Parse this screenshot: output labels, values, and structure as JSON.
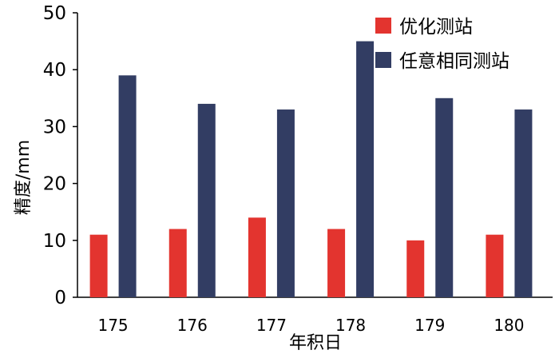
{
  "chart_data": {
    "type": "bar",
    "categories": [
      "175",
      "176",
      "177",
      "178",
      "179",
      "180"
    ],
    "series": [
      {
        "name": "优化测站",
        "color": "#e3342f",
        "values": [
          11,
          12,
          14,
          12,
          10,
          11
        ]
      },
      {
        "name": "任意相同测站",
        "color": "#323d63",
        "values": [
          39,
          34,
          33,
          45,
          35,
          33
        ]
      }
    ],
    "xlabel": "年积日",
    "ylabel": "精度/mm",
    "ylim": [
      0,
      50
    ],
    "yticks": [
      0,
      10,
      20,
      30,
      40,
      50
    ],
    "grid": false,
    "legend": "top-right"
  }
}
